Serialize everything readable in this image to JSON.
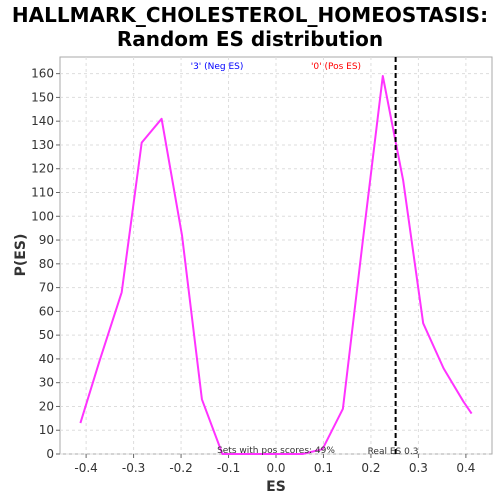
{
  "chart_data": {
    "type": "line",
    "title": [
      "HALLMARK_CHOLESTEROL_HOMEOSTASIS:",
      "Random ES distribution"
    ],
    "xlabel": "ES",
    "ylabel": "P(ES)",
    "xlim": [
      -0.455,
      0.455
    ],
    "ylim": [
      0,
      167
    ],
    "xticks": [
      -0.4,
      -0.3,
      -0.2,
      -0.1,
      0.0,
      0.1,
      0.2,
      0.3,
      0.4
    ],
    "xtick_labels": [
      "-0.4",
      "-0.3",
      "-0.2",
      "-0.1",
      "0.0",
      "0.1",
      "0.2",
      "0.3",
      "0.4"
    ],
    "yticks": [
      0,
      10,
      20,
      30,
      40,
      50,
      60,
      70,
      80,
      90,
      100,
      110,
      120,
      130,
      140,
      150,
      160
    ],
    "ytick_labels": [
      "0",
      "10",
      "20",
      "30",
      "40",
      "50",
      "60",
      "70",
      "80",
      "90",
      "100",
      "110",
      "120",
      "130",
      "140",
      "150",
      "160"
    ],
    "grid": true,
    "series": [
      {
        "color": "#ff33ff",
        "x": [
          -0.412,
          -0.372,
          -0.325,
          -0.283,
          -0.241,
          -0.198,
          -0.156,
          -0.113,
          -0.071,
          -0.029,
          0.013,
          0.056,
          0.098,
          0.141,
          0.183,
          0.225,
          0.268,
          0.31,
          0.353,
          0.395,
          0.412
        ],
        "y": [
          13,
          39,
          68,
          131,
          141,
          92,
          23,
          0,
          0,
          0,
          0,
          0,
          2,
          19,
          90,
          159,
          115,
          55,
          36,
          22,
          17
        ]
      }
    ],
    "vline": {
      "x": 0.252,
      "color": "#000000",
      "style": "dashed"
    },
    "annotations": {
      "neg_es": {
        "text": "'3' (Neg ES)",
        "color": "#0000ff"
      },
      "pos_es": {
        "text": "'0' (Pos ES)",
        "color": "#ff0000"
      },
      "pos_scores": {
        "text": "Sets with pos scores: 49%",
        "color": "#333333"
      },
      "real_es": {
        "text": "Real ES 0.3",
        "color": "#333333"
      }
    }
  }
}
